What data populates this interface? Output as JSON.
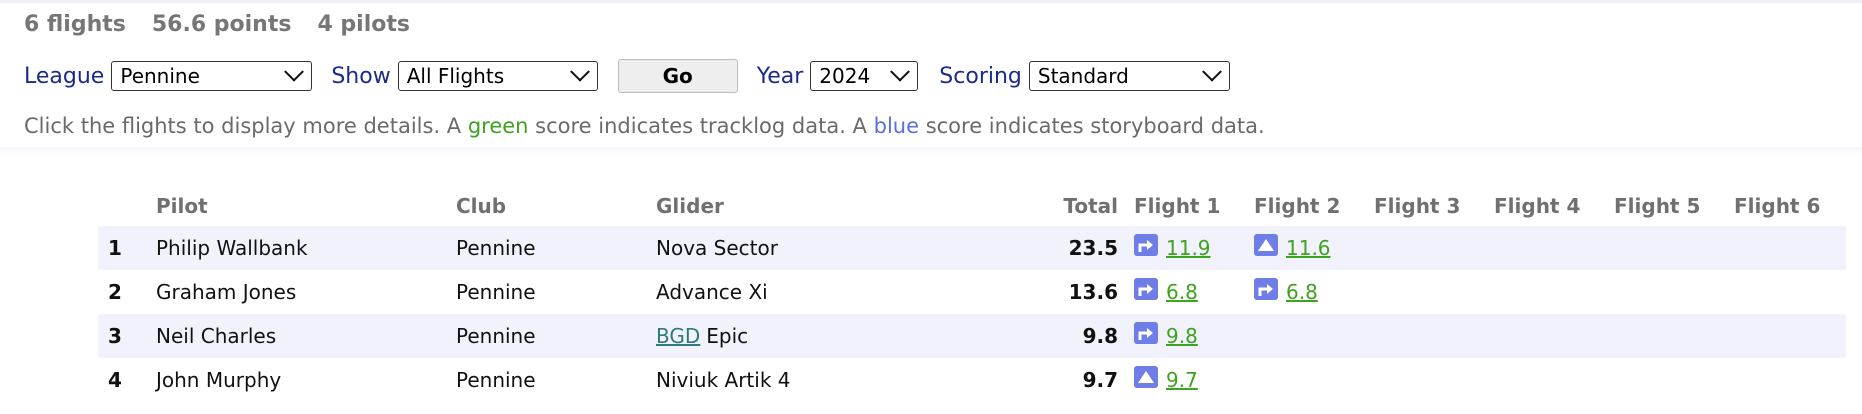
{
  "summary": {
    "flights": "6 flights",
    "points": "56.6 points",
    "pilots": "4 pilots"
  },
  "filters": {
    "league_label": "League",
    "league_value": "Pennine",
    "show_label": "Show",
    "show_value": "All Flights",
    "go_label": "Go",
    "year_label": "Year",
    "year_value": "2024",
    "scoring_label": "Scoring",
    "scoring_value": "Standard"
  },
  "hint": {
    "part1": "Click the flights to display more details. A ",
    "green_word": "green",
    "part2": " score indicates tracklog data. A ",
    "blue_word": "blue",
    "part3": " score indicates storyboard data."
  },
  "colors": {
    "tracklog_green": "#3ea31e",
    "storyboard_blue": "#5b6ee0",
    "label_navy": "#1c2a8a",
    "row_alt": "#f1f2fb"
  },
  "table": {
    "headers": {
      "pilot": "Pilot",
      "club": "Club",
      "glider": "Glider",
      "total": "Total",
      "f1": "Flight 1",
      "f2": "Flight 2",
      "f3": "Flight 3",
      "f4": "Flight 4",
      "f5": "Flight 5",
      "f6": "Flight 6"
    },
    "rows": [
      {
        "rank": "1",
        "pilot": "Philip Wallbank",
        "club": "Pennine",
        "glider_link": "",
        "glider": "Nova Sector",
        "total": "23.5",
        "flights": [
          {
            "score": "11.9",
            "icon": "out-and-return-icon"
          },
          {
            "score": "11.6",
            "icon": "triangle-icon"
          }
        ]
      },
      {
        "rank": "2",
        "pilot": "Graham Jones",
        "club": "Pennine",
        "glider_link": "",
        "glider": "Advance Xi",
        "total": "13.6",
        "flights": [
          {
            "score": "6.8",
            "icon": "out-and-return-icon"
          },
          {
            "score": "6.8",
            "icon": "out-and-return-icon"
          }
        ]
      },
      {
        "rank": "3",
        "pilot": "Neil Charles",
        "club": "Pennine",
        "glider_link": "BGD",
        "glider": "Epic",
        "total": "9.8",
        "flights": [
          {
            "score": "9.8",
            "icon": "out-and-return-icon"
          }
        ]
      },
      {
        "rank": "4",
        "pilot": "John Murphy",
        "club": "Pennine",
        "glider_link": "",
        "glider": "Niviuk Artik 4",
        "total": "9.7",
        "flights": [
          {
            "score": "9.7",
            "icon": "triangle-icon"
          }
        ]
      }
    ]
  }
}
